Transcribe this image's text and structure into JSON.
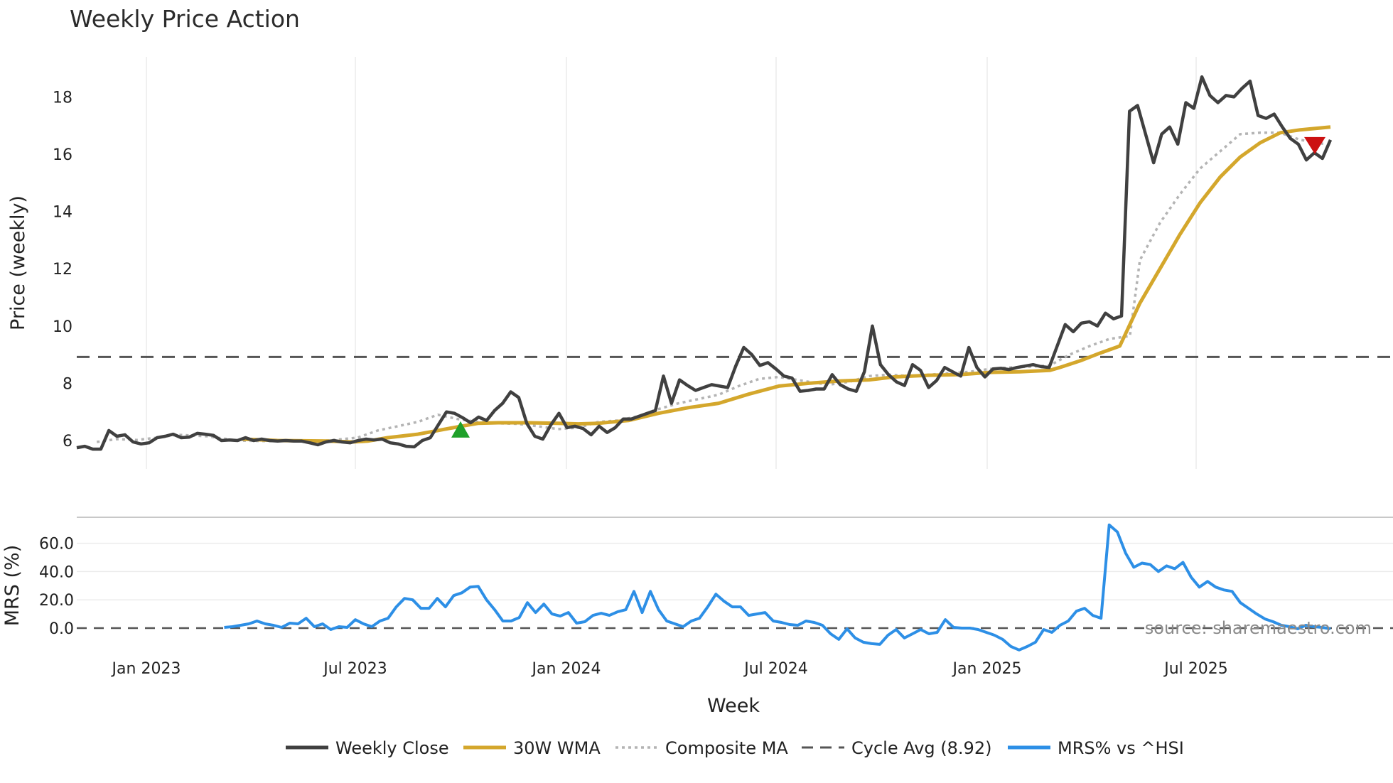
{
  "chart_data": {
    "type": "line",
    "title": "Weekly Price Action",
    "xlabel": "Week",
    "price_ylabel": "Price (weekly)",
    "mrs_ylabel": "MRS (%)",
    "x_tick_labels": [
      "Jan 2023",
      "Jul 2023",
      "Jan 2024",
      "Jul 2024",
      "Jan 2025",
      "Jul 2025"
    ],
    "price_yticks": [
      "6",
      "8",
      "10",
      "12",
      "14",
      "16",
      "18"
    ],
    "price_ylim": [
      5,
      19.3
    ],
    "mrs_yticks": [
      "0.0",
      "20.0",
      "40.0",
      "60.0"
    ],
    "mrs_ylim": [
      -20,
      76
    ],
    "cycle_avg": 8.92,
    "source": "source: sharemaestro.com",
    "legend": [
      {
        "label": "Weekly Close",
        "style": "solid-dark"
      },
      {
        "label": "30W WMA",
        "style": "solid-gold"
      },
      {
        "label": "Composite MA",
        "style": "dotted-grey"
      },
      {
        "label": "Cycle Avg (8.92)",
        "style": "dashed-grey"
      },
      {
        "label": "MRS% vs ^HSI",
        "style": "solid-blue"
      }
    ],
    "colors": {
      "close": "#404040",
      "wma": "#d4a72c",
      "composite": "#b4b4b4",
      "cycle": "#555555",
      "mrs": "#2d8fe6",
      "buy_marker": "#1fa02a",
      "sell_marker": "#cc1111",
      "grid": "#ebebeb"
    },
    "markers": [
      {
        "type": "buy",
        "week": 55,
        "price": 6.35
      },
      {
        "type": "sell",
        "week": 181,
        "price": 16.3
      }
    ],
    "weekly_close": [
      5.75,
      5.8,
      5.7,
      5.7,
      6.35,
      6.15,
      6.2,
      5.95,
      5.88,
      5.92,
      6.1,
      6.15,
      6.22,
      6.1,
      6.12,
      6.25,
      6.22,
      6.18,
      6.0,
      6.02,
      6.0,
      6.1,
      6.0,
      6.05,
      6.0,
      5.98,
      6.0,
      5.98,
      5.98,
      5.92,
      5.85,
      5.95,
      6.0,
      5.95,
      5.92,
      6.0,
      6.05,
      6.02,
      6.05,
      5.92,
      5.88,
      5.8,
      5.78,
      6.0,
      6.1,
      6.55,
      7.0,
      6.95,
      6.8,
      6.62,
      6.82,
      6.7,
      7.05,
      7.3,
      7.7,
      7.5,
      6.6,
      6.15,
      6.05,
      6.55,
      6.95,
      6.45,
      6.5,
      6.42,
      6.2,
      6.5,
      6.28,
      6.45,
      6.75,
      6.75,
      6.85,
      6.95,
      7.05,
      8.25,
      7.3,
      8.12,
      7.92,
      7.75,
      7.85,
      7.95,
      7.9,
      7.85,
      8.6,
      9.25,
      9.0,
      8.62,
      8.72,
      8.5,
      8.25,
      8.18,
      7.72,
      7.75,
      7.8,
      7.8,
      8.3,
      7.95,
      7.8,
      7.72,
      8.4,
      10.0,
      8.65,
      8.3,
      8.05,
      7.92,
      8.65,
      8.45,
      7.85,
      8.1,
      8.55,
      8.4,
      8.25,
      9.25,
      8.55,
      8.22,
      8.5,
      8.52,
      8.48,
      8.55,
      8.6,
      8.65,
      8.58,
      8.55,
      9.3,
      10.05,
      9.8,
      10.1,
      10.15,
      10.0,
      10.45,
      10.25,
      10.35,
      17.5,
      17.7,
      16.7,
      15.7,
      16.7,
      16.95,
      16.35,
      17.8,
      17.6,
      18.7,
      18.05,
      17.8,
      18.05,
      18.0,
      18.3,
      18.55,
      17.35,
      17.25,
      17.4,
      16.95,
      16.55,
      16.35,
      15.8,
      16.05,
      15.85,
      16.5
    ],
    "wma_30w": [
      null,
      null,
      null,
      null,
      null,
      null,
      null,
      null,
      null,
      null,
      null,
      null,
      null,
      null,
      null,
      null,
      null,
      null,
      null,
      null,
      null,
      null,
      null,
      null,
      null,
      null,
      null,
      null,
      null,
      null,
      null,
      null,
      null,
      null,
      null,
      null,
      null,
      null,
      null,
      null,
      null,
      null,
      null,
      null,
      null,
      null,
      null,
      null,
      null,
      null,
      null,
      null,
      null,
      null,
      null,
      null,
      null,
      null,
      null,
      null,
      null,
      null,
      null,
      null,
      null,
      null,
      null,
      null,
      null,
      null,
      null,
      null,
      null,
      null,
      null,
      null,
      null,
      null,
      null,
      null,
      null,
      null,
      null,
      null,
      null,
      null,
      null,
      null,
      null,
      null,
      null,
      null,
      null,
      null,
      null,
      null,
      null,
      null,
      null,
      null,
      null,
      null,
      null,
      null,
      null,
      null,
      null,
      null,
      null,
      null,
      null,
      null,
      null,
      null,
      null,
      null,
      null,
      null,
      null,
      null,
      null,
      null,
      null,
      null,
      null,
      null,
      null,
      null,
      null,
      null,
      null,
      null,
      null,
      null,
      null,
      null,
      null,
      null,
      null,
      null,
      null,
      null,
      null,
      null,
      null,
      null,
      null,
      null,
      null,
      null,
      null,
      null,
      null,
      null,
      null,
      null,
      null,
      null,
      null,
      null,
      null,
      null,
      null,
      null
    ],
    "wma_points": [
      [
        33,
        6.05
      ],
      [
        40,
        6.0
      ],
      [
        50,
        5.98
      ],
      [
        55,
        5.95
      ],
      [
        58,
        5.98
      ],
      [
        62,
        6.1
      ],
      [
        68,
        6.22
      ],
      [
        72,
        6.35
      ],
      [
        76,
        6.48
      ],
      [
        80,
        6.6
      ],
      [
        84,
        6.62
      ],
      [
        90,
        6.62
      ],
      [
        96,
        6.6
      ],
      [
        100,
        6.58
      ],
      [
        104,
        6.6
      ],
      [
        110,
        6.7
      ],
      [
        116,
        6.95
      ],
      [
        122,
        7.15
      ],
      [
        128,
        7.3
      ],
      [
        134,
        7.62
      ],
      [
        140,
        7.9
      ],
      [
        146,
        8.0
      ],
      [
        152,
        8.08
      ],
      [
        158,
        8.12
      ],
      [
        163,
        8.22
      ],
      [
        170,
        8.28
      ],
      [
        176,
        8.3
      ],
      [
        182,
        8.38
      ],
      [
        188,
        8.4
      ],
      [
        194,
        8.45
      ],
      [
        196,
        8.55
      ],
      [
        200,
        8.78
      ],
      [
        204,
        9.05
      ],
      [
        208,
        9.3
      ],
      [
        212,
        10.8
      ],
      [
        216,
        12.0
      ],
      [
        220,
        13.2
      ],
      [
        224,
        14.3
      ],
      [
        228,
        15.2
      ],
      [
        232,
        15.9
      ],
      [
        236,
        16.4
      ],
      [
        240,
        16.75
      ],
      [
        244,
        16.85
      ],
      [
        250,
        16.95
      ]
    ],
    "composite_points": [
      [
        4,
        5.95
      ],
      [
        8,
        6.05
      ],
      [
        12,
        6.02
      ],
      [
        16,
        6.1
      ],
      [
        20,
        6.2
      ],
      [
        26,
        6.15
      ],
      [
        32,
        6.0
      ],
      [
        38,
        5.98
      ],
      [
        44,
        5.98
      ],
      [
        50,
        6.0
      ],
      [
        56,
        6.1
      ],
      [
        60,
        6.35
      ],
      [
        64,
        6.5
      ],
      [
        68,
        6.65
      ],
      [
        72,
        6.9
      ],
      [
        76,
        6.75
      ],
      [
        80,
        6.65
      ],
      [
        84,
        6.6
      ],
      [
        88,
        6.58
      ],
      [
        92,
        6.5
      ],
      [
        96,
        6.4
      ],
      [
        100,
        6.45
      ],
      [
        104,
        6.65
      ],
      [
        108,
        6.7
      ],
      [
        112,
        6.85
      ],
      [
        116,
        7.1
      ],
      [
        120,
        7.3
      ],
      [
        124,
        7.45
      ],
      [
        128,
        7.6
      ],
      [
        132,
        7.9
      ],
      [
        136,
        8.15
      ],
      [
        140,
        8.22
      ],
      [
        146,
        8.05
      ],
      [
        150,
        7.95
      ],
      [
        154,
        8.05
      ],
      [
        158,
        8.25
      ],
      [
        162,
        8.3
      ],
      [
        166,
        8.25
      ],
      [
        170,
        8.3
      ],
      [
        174,
        8.35
      ],
      [
        178,
        8.4
      ],
      [
        182,
        8.5
      ],
      [
        186,
        8.55
      ],
      [
        190,
        8.58
      ],
      [
        194,
        8.62
      ],
      [
        198,
        9.0
      ],
      [
        202,
        9.3
      ],
      [
        206,
        9.55
      ],
      [
        210,
        9.65
      ],
      [
        212,
        12.3
      ],
      [
        216,
        13.6
      ],
      [
        220,
        14.6
      ],
      [
        224,
        15.5
      ],
      [
        228,
        16.1
      ],
      [
        232,
        16.7
      ],
      [
        236,
        16.75
      ],
      [
        240,
        16.75
      ],
      [
        244,
        16.5
      ],
      [
        249,
        16.35
      ]
    ],
    "mrs_points": [
      [
        36,
        0.5
      ],
      [
        38,
        1.0
      ],
      [
        40,
        2.0
      ],
      [
        42,
        3.0
      ],
      [
        44,
        5.0
      ],
      [
        46,
        3.0
      ],
      [
        48,
        2.0
      ],
      [
        50,
        0.5
      ],
      [
        52,
        3.5
      ],
      [
        54,
        3.0
      ],
      [
        56,
        7.0
      ],
      [
        58,
        1.0
      ],
      [
        60,
        3.0
      ],
      [
        62,
        -1.0
      ],
      [
        64,
        1.0
      ],
      [
        66,
        0.5
      ],
      [
        68,
        6.0
      ],
      [
        70,
        3.0
      ],
      [
        72,
        1.0
      ],
      [
        74,
        5.0
      ],
      [
        76,
        7.0
      ],
      [
        78,
        15.0
      ],
      [
        80,
        21.0
      ],
      [
        82,
        20.0
      ],
      [
        84,
        14.0
      ],
      [
        86,
        14.0
      ],
      [
        88,
        21.0
      ],
      [
        90,
        15.0
      ],
      [
        92,
        23.0
      ],
      [
        94,
        25.0
      ],
      [
        96,
        29.0
      ],
      [
        98,
        29.5
      ],
      [
        100,
        20.0
      ],
      [
        102,
        13.0
      ],
      [
        104,
        5.0
      ],
      [
        106,
        5.0
      ],
      [
        108,
        7.5
      ],
      [
        110,
        18.0
      ],
      [
        112,
        11.0
      ],
      [
        114,
        17.0
      ],
      [
        116,
        10.0
      ],
      [
        118,
        8.5
      ],
      [
        120,
        11.0
      ],
      [
        122,
        3.5
      ],
      [
        124,
        4.5
      ],
      [
        126,
        9.0
      ],
      [
        128,
        10.5
      ],
      [
        130,
        9.0
      ],
      [
        132,
        11.5
      ],
      [
        134,
        13.0
      ],
      [
        136,
        26.0
      ],
      [
        138,
        11.0
      ],
      [
        140,
        26.0
      ],
      [
        142,
        13.0
      ],
      [
        144,
        5.0
      ],
      [
        146,
        3.0
      ],
      [
        148,
        1.0
      ],
      [
        150,
        5.0
      ],
      [
        152,
        7.0
      ],
      [
        154,
        15.0
      ],
      [
        156,
        24.0
      ],
      [
        158,
        19.0
      ],
      [
        160,
        15.0
      ],
      [
        162,
        15.0
      ],
      [
        164,
        9.0
      ],
      [
        166,
        10.0
      ],
      [
        168,
        11.0
      ],
      [
        170,
        5.0
      ],
      [
        172,
        4.0
      ],
      [
        174,
        2.5
      ],
      [
        176,
        2.0
      ],
      [
        178,
        5.0
      ],
      [
        180,
        4.0
      ],
      [
        182,
        2.0
      ],
      [
        184,
        -4.0
      ],
      [
        186,
        -8.0
      ],
      [
        188,
        -0.5
      ],
      [
        190,
        -7.0
      ],
      [
        192,
        -10.0
      ],
      [
        194,
        -11.0
      ],
      [
        196,
        -11.5
      ],
      [
        198,
        -5.0
      ],
      [
        200,
        -1.0
      ],
      [
        202,
        -7.0
      ],
      [
        204,
        -4.0
      ],
      [
        206,
        -1.0
      ],
      [
        208,
        -4.0
      ],
      [
        210,
        -3.0
      ],
      [
        212,
        6.0
      ],
      [
        214,
        0.5
      ],
      [
        216,
        0.0
      ],
      [
        218,
        0.0
      ],
      [
        220,
        -1.0
      ],
      [
        222,
        -3.0
      ],
      [
        224,
        -5.0
      ],
      [
        226,
        -8.0
      ],
      [
        228,
        -13.0
      ],
      [
        230,
        -15.5
      ],
      [
        232,
        -13.0
      ],
      [
        234,
        -10.0
      ],
      [
        236,
        -1.0
      ],
      [
        238,
        -3.0
      ],
      [
        240,
        2.0
      ],
      [
        242,
        5.0
      ],
      [
        244,
        12.0
      ],
      [
        246,
        14.0
      ],
      [
        248,
        9.0
      ],
      [
        250,
        7.0
      ],
      [
        252,
        73.0
      ],
      [
        254,
        68.0
      ],
      [
        256,
        53.0
      ],
      [
        258,
        43.0
      ],
      [
        260,
        46.0
      ],
      [
        262,
        45.0
      ],
      [
        264,
        40.0
      ],
      [
        266,
        44.0
      ],
      [
        268,
        42.0
      ],
      [
        270,
        46.5
      ],
      [
        272,
        36.0
      ],
      [
        274,
        29.0
      ],
      [
        276,
        33.0
      ],
      [
        278,
        29.0
      ],
      [
        280,
        27.0
      ],
      [
        282,
        26.0
      ],
      [
        284,
        18.0
      ],
      [
        286,
        14.0
      ],
      [
        288,
        10.0
      ],
      [
        290,
        6.5
      ],
      [
        292,
        4.5
      ],
      [
        294,
        2.0
      ],
      [
        296,
        1.0
      ],
      [
        298,
        -0.5
      ],
      [
        300,
        2.0
      ],
      [
        302,
        1.0
      ],
      [
        304,
        0.5
      ],
      [
        306,
        -0.5
      ]
    ]
  }
}
